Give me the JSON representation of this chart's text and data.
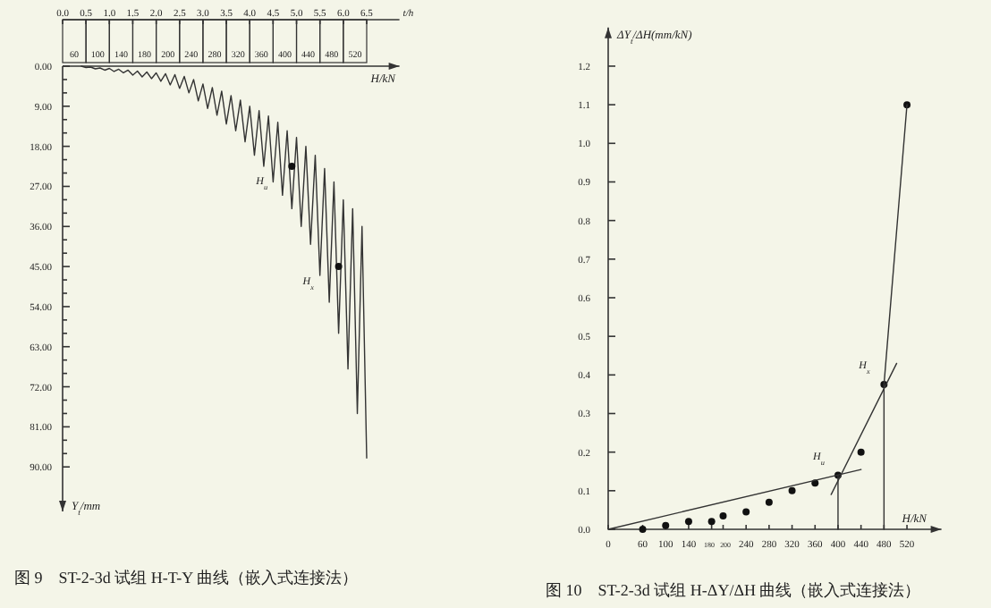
{
  "chart_data": [
    {
      "type": "line",
      "title": "图 9　ST-2-3d 试组 H-T-Y 曲线（嵌入式连接法）",
      "xlabel": "t/h",
      "ylabel": "Y$_{t}$/mm",
      "xlim": [
        0,
        7.2
      ],
      "xticks": [
        {
          "value": 0,
          "label": "0.0"
        },
        0.5,
        {
          "value": 1,
          "label": "1.0"
        },
        1.5,
        {
          "value": 2,
          "label": "2.0"
        },
        2.5,
        {
          "value": 3,
          "label": "3.0"
        },
        3.5,
        {
          "value": 4,
          "label": "4.0"
        },
        4.5,
        {
          "value": 5,
          "label": "5.0"
        },
        5.5,
        {
          "value": 6,
          "label": "6.0"
        },
        6.5
      ],
      "ylim": [
        100,
        0
      ],
      "yticks": [
        {
          "value": 0,
          "label": "0.00"
        },
        {
          "value": 9,
          "label": "9.00"
        },
        {
          "value": 18,
          "label": "18.00"
        },
        {
          "value": 27,
          "label": "27.00"
        },
        {
          "value": 36,
          "label": "36.00"
        },
        {
          "value": 45,
          "label": "45.00"
        },
        {
          "value": 54,
          "label": "54.00"
        },
        {
          "value": 63,
          "label": "63.00"
        },
        {
          "value": 72,
          "label": "72.00"
        },
        {
          "value": 81,
          "label": "81.00"
        },
        {
          "value": 90,
          "label": "90.00"
        }
      ],
      "series": [
        {
          "color": "#333333",
          "marker": "none",
          "x": [
            0.4,
            0.5,
            0.6,
            0.7,
            0.8,
            0.9,
            1.0,
            1.1,
            1.2,
            1.3,
            1.4,
            1.5,
            1.6,
            1.7,
            1.8,
            1.9,
            2.0,
            2.1,
            2.2,
            2.3,
            2.4,
            2.5,
            2.6,
            2.7,
            2.8,
            2.9,
            3.0,
            3.1,
            3.2,
            3.3,
            3.4,
            3.5,
            3.6,
            3.7,
            3.8,
            3.9,
            4.0,
            4.1,
            4.2,
            4.3,
            4.4,
            4.5,
            4.6,
            4.7,
            4.8,
            4.9,
            5.0,
            5.1,
            5.2,
            5.3,
            5.4,
            5.5,
            5.6,
            5.7,
            5.8,
            5.9,
            6.0,
            6.1,
            6.2,
            6.3,
            6.4,
            6.5
          ],
          "values": [
            0,
            0.3,
            0.2,
            0.6,
            0.4,
            0.9,
            0.5,
            1.2,
            0.7,
            1.5,
            0.9,
            2.0,
            1.1,
            2.4,
            1.3,
            2.8,
            1.5,
            3.4,
            1.7,
            4.2,
            1.9,
            5.0,
            2.3,
            6.0,
            3.0,
            7.8,
            4.0,
            9.5,
            4.8,
            11,
            5.6,
            13,
            6.6,
            14.5,
            7.6,
            17,
            9,
            20,
            10,
            22.5,
            11.2,
            26,
            12.6,
            29,
            14.5,
            32,
            16,
            36,
            18,
            40,
            20,
            47,
            23,
            53,
            26,
            60,
            30,
            68,
            32,
            78,
            36,
            88
          ]
        },
        {
          "type": "scatter",
          "color": "#111111",
          "marker": "circle",
          "x": [
            4.9,
            5.9
          ],
          "values": [
            22.5,
            45
          ]
        }
      ],
      "annotations": [
        "H/kN",
        "60",
        "100",
        "140",
        "180",
        "200",
        "240",
        "280",
        "320",
        "360",
        "400",
        "440",
        "480",
        "520",
        {
          "text": "H$_{u}$",
          "x": 4.9,
          "y": 22.5
        },
        {
          "text": "H$_{x}$",
          "x": 5.9,
          "y": 45
        }
      ]
    },
    {
      "type": "scatter",
      "title": "图 10　ST-2-3d 试组 H-ΔY/ΔH 曲线（嵌入式连接法）",
      "xlabel": "H/kN",
      "ylabel": "ΔY$_{t}$/ΔH(mm/kN)",
      "xlim": [
        0,
        580
      ],
      "xticks": [
        0,
        60,
        100,
        140,
        180,
        200,
        240,
        280,
        320,
        360,
        400,
        440,
        480,
        520
      ],
      "ylim": [
        0,
        1.3
      ],
      "yticks": [
        {
          "value": 0,
          "label": "0.0"
        },
        0.1,
        0.2,
        0.3,
        0.4,
        0.5,
        0.6,
        0.7,
        0.8,
        0.9,
        {
          "value": 1,
          "label": "1.0"
        },
        1.1,
        1.2
      ],
      "series": [
        {
          "color": "#111111",
          "marker": "circle",
          "x": [
            60,
            100,
            140,
            180,
            200,
            240,
            280,
            320,
            360,
            400,
            440,
            480,
            520
          ],
          "values": [
            0,
            0.01,
            0.02,
            0.02,
            0.035,
            0.045,
            0.07,
            0.1,
            0.12,
            0.14,
            0.2,
            0.375,
            1.1
          ]
        },
        {
          "type": "line",
          "color": "#333333",
          "marker": "none",
          "x": [
            0,
            440
          ],
          "values": [
            0,
            0.155
          ]
        },
        {
          "type": "line",
          "color": "#333333",
          "marker": "none",
          "x": [
            388,
            502
          ],
          "values": [
            0.09,
            0.43
          ]
        },
        {
          "type": "line",
          "color": "#333333",
          "marker": "none",
          "x": [
            480,
            520
          ],
          "values": [
            0.375,
            1.1
          ]
        },
        {
          "type": "line",
          "color": "#333333",
          "marker": "none",
          "x": [
            400,
            400
          ],
          "values": [
            0,
            0.14
          ]
        },
        {
          "type": "line",
          "color": "#333333",
          "marker": "none",
          "x": [
            480,
            480
          ],
          "values": [
            0,
            0.375
          ]
        }
      ],
      "annotations": [
        {
          "text": "H$_{u}$",
          "x": 400,
          "y": 0.14
        },
        {
          "text": "H$_{x}$",
          "x": 480,
          "y": 0.375
        }
      ]
    }
  ]
}
